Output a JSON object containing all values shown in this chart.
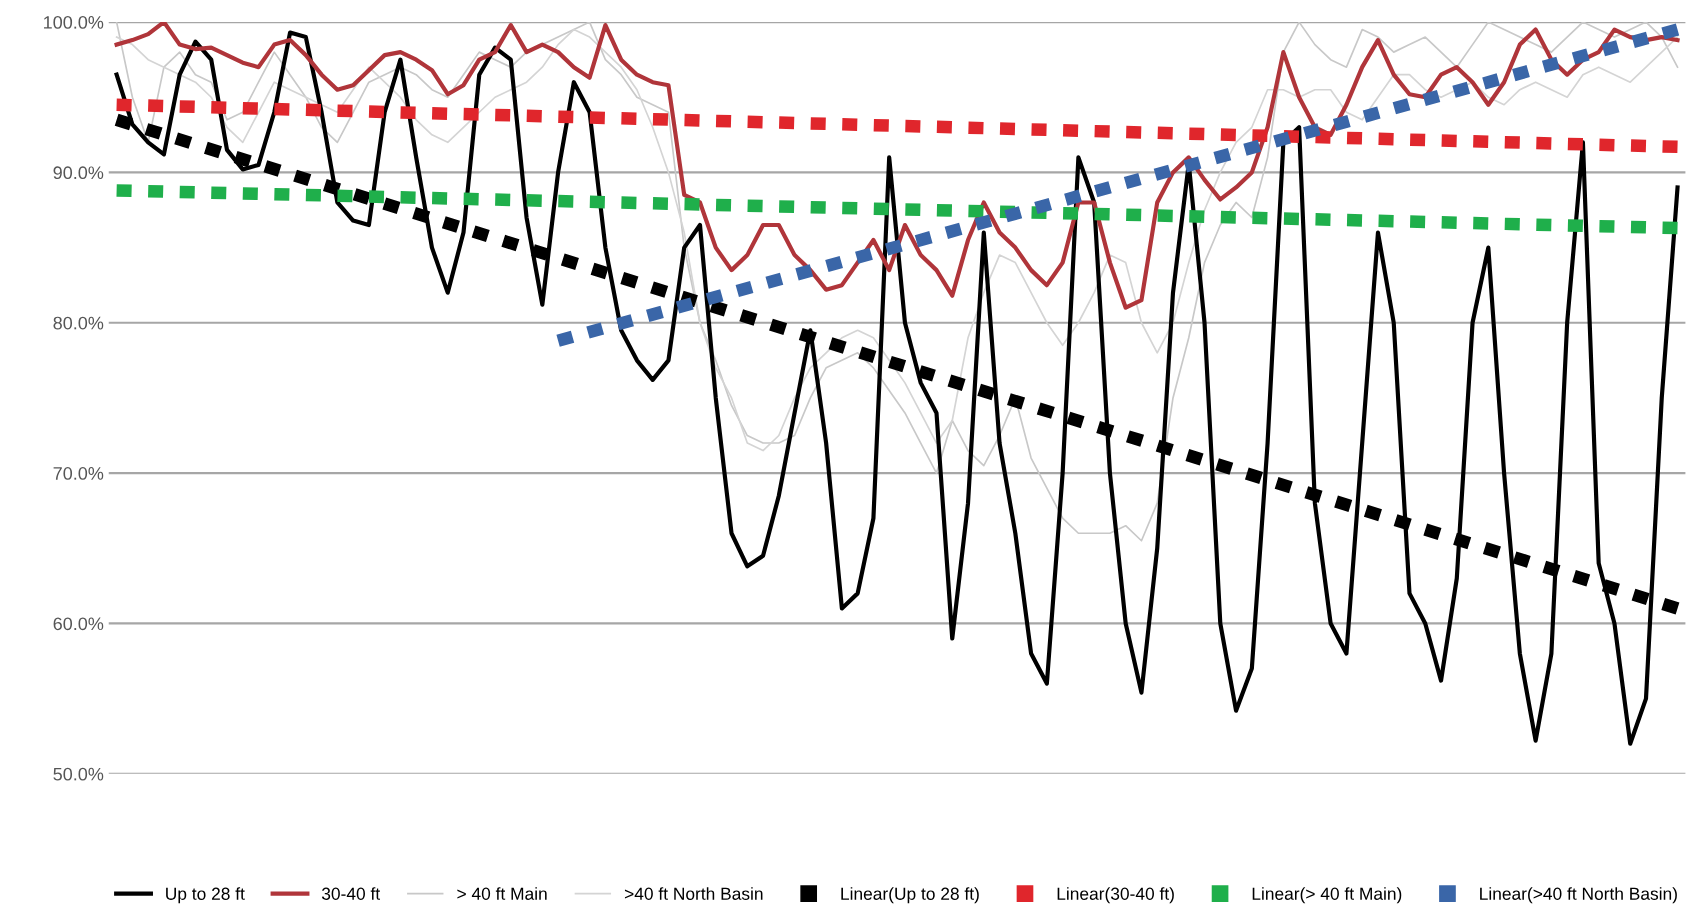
{
  "chart_data": {
    "type": "line",
    "categories": [
      null,
      null,
      null,
      null,
      null,
      null,
      null,
      null,
      null,
      null,
      null,
      null,
      null,
      null,
      null,
      null,
      null,
      null,
      null,
      null,
      null,
      null,
      null,
      null,
      null,
      null,
      null,
      null,
      null,
      null,
      null,
      null,
      null,
      null,
      null,
      null,
      null,
      null,
      null,
      null,
      null,
      null,
      null,
      null,
      null,
      null,
      null,
      null,
      null,
      null,
      null,
      null,
      null,
      null,
      null,
      null,
      null,
      null,
      null,
      null,
      null,
      null,
      null,
      null,
      null,
      null,
      null,
      null,
      null,
      null,
      null,
      null,
      null,
      null,
      null,
      null,
      null,
      null,
      null,
      null,
      null,
      null,
      null,
      null,
      null,
      null,
      null,
      null,
      null,
      null,
      null,
      null,
      null,
      null,
      null,
      null,
      null,
      null,
      null,
      null
    ],
    "series": [
      {
        "name": "Up to 28 ft",
        "color": "#000000",
        "line_style": "solid",
        "values": [
          96.5,
          93.2,
          92,
          91.2,
          96.5,
          98.7,
          97.5,
          91.5,
          90.2,
          90.5,
          94,
          99.3,
          99,
          94,
          88,
          86.8,
          86.5,
          94,
          97.5,
          91,
          85,
          82,
          86,
          96.5,
          98.3,
          97.5,
          87,
          81.2,
          90,
          96,
          94,
          85,
          79.5,
          77.5,
          76.2,
          77.5,
          85,
          86.5,
          75,
          66,
          63.8,
          64.5,
          68.5,
          74,
          79.5,
          72,
          61,
          62,
          67,
          91,
          80,
          76,
          74,
          59,
          68,
          86,
          72,
          66,
          58,
          56,
          70,
          91,
          88,
          70,
          60,
          55.4,
          65,
          82,
          90.6,
          80,
          60,
          54.2,
          57,
          72,
          92,
          93,
          68,
          60,
          58,
          72,
          86,
          80,
          62,
          60,
          56.2,
          63,
          80,
          85,
          70,
          58,
          52.2,
          58,
          80,
          92,
          64,
          60,
          52,
          55,
          75,
          89
        ]
      },
      {
        "name": "30-40 ft",
        "color": "#b0353a",
        "line_style": "solid",
        "values": [
          98.5,
          98.8,
          99.2,
          100,
          98.5,
          98.2,
          98.3,
          97.8,
          97.3,
          97,
          98.5,
          98.8,
          97.8,
          96.5,
          95.5,
          95.8,
          96.8,
          97.8,
          98,
          97.5,
          96.8,
          95.2,
          95.8,
          97.5,
          98,
          99.8,
          98,
          98.5,
          98,
          97,
          96.3,
          99.8,
          97.5,
          96.5,
          96,
          95.8,
          88.5,
          88,
          85,
          83.5,
          84.5,
          86.5,
          86.5,
          84.5,
          83.5,
          82.2,
          82.5,
          84,
          85.5,
          83.5,
          86.5,
          84.5,
          83.5,
          81.8,
          85.5,
          88,
          86,
          85,
          83.5,
          82.5,
          84,
          88,
          88,
          84,
          81,
          81.5,
          88,
          90,
          91,
          89.5,
          88.2,
          89,
          90,
          93,
          98,
          95,
          93,
          92.5,
          94.5,
          97,
          98.8,
          96.5,
          95.2,
          95,
          96.5,
          97,
          96,
          94.5,
          96,
          98.5,
          99.5,
          97.5,
          96.5,
          97.5,
          98,
          99.5,
          99,
          98.8,
          99,
          98.8
        ]
      },
      {
        "name": "> 40 ft Main",
        "color": "#c8c8c8",
        "line_style": "solid",
        "values": [
          100,
          95,
          92,
          97,
          98,
          96.5,
          96,
          93.5,
          94,
          96,
          98,
          96.5,
          95,
          93,
          92,
          94,
          96,
          96.5,
          97,
          96.5,
          95.5,
          95,
          96.5,
          98,
          97.5,
          97,
          98,
          98.5,
          99,
          99.5,
          100,
          97.5,
          96.5,
          95,
          94.5,
          94,
          85,
          80,
          77.5,
          74.5,
          72.5,
          72,
          72,
          72.5,
          75,
          77,
          77.5,
          78,
          77,
          75.5,
          74,
          72,
          70,
          73.5,
          71.5,
          70.5,
          72.5,
          75,
          71,
          69,
          67,
          66,
          66,
          66,
          66.5,
          65.5,
          68,
          75,
          79,
          84,
          86.5,
          88,
          87,
          91,
          98,
          100,
          98.5,
          97.5,
          97,
          99.5,
          99,
          98,
          98.5,
          99,
          98,
          97,
          98.5,
          100,
          99.5,
          99,
          98.5,
          98,
          99,
          100,
          99.5,
          99,
          99.5,
          100,
          99,
          97
        ]
      },
      {
        "name": ">40 ft North Basin",
        "color": "#d4d4d4",
        "line_style": "solid",
        "values": [
          99,
          98.5,
          97.5,
          97,
          96.5,
          96,
          95,
          93,
          92,
          94,
          96,
          95.5,
          95,
          94.5,
          94,
          95.5,
          97,
          96,
          95,
          93.5,
          92.5,
          92,
          93,
          94,
          95,
          95.5,
          96,
          97,
          98.5,
          99.5,
          99,
          98,
          97,
          95.5,
          93,
          90,
          86,
          80,
          77,
          75,
          72,
          71.5,
          72.5,
          75,
          77,
          78,
          79,
          79.5,
          79,
          77.5,
          76,
          74,
          72,
          73.5,
          79,
          82,
          84.5,
          84,
          82,
          80,
          78.5,
          80,
          82,
          84.5,
          84,
          80,
          78,
          80,
          84,
          87.5,
          90,
          92,
          93,
          95.5,
          95.5,
          95,
          95.5,
          95.5,
          94,
          93.5,
          95,
          96.5,
          96.5,
          95.5,
          95,
          95.5,
          96,
          95,
          94.5,
          95.5,
          96,
          95.5,
          95,
          96.5,
          97,
          96.5,
          96,
          97,
          98,
          99
        ]
      },
      {
        "name": "Linear(Up to 28 ft)",
        "color": "#000000",
        "line_style": "dotted",
        "values": [
          93.5,
          null,
          null,
          null,
          null,
          null,
          null,
          null,
          null,
          null,
          null,
          null,
          null,
          null,
          null,
          null,
          null,
          null,
          null,
          null,
          null,
          null,
          null,
          null,
          null,
          null,
          null,
          null,
          null,
          null,
          null,
          null,
          null,
          null,
          null,
          null,
          null,
          null,
          null,
          null,
          null,
          null,
          null,
          null,
          null,
          null,
          null,
          null,
          null,
          null,
          null,
          null,
          null,
          null,
          null,
          null,
          null,
          null,
          null,
          null,
          null,
          null,
          null,
          null,
          null,
          null,
          null,
          null,
          null,
          null,
          null,
          null,
          null,
          null,
          null,
          null,
          null,
          null,
          null,
          null,
          null,
          null,
          null,
          null,
          null,
          null,
          null,
          null,
          null,
          null,
          null,
          null,
          null,
          null,
          null,
          null,
          null,
          null,
          null,
          61
        ]
      },
      {
        "name": "Linear(30-40 ft)",
        "color": "#e0262c",
        "line_style": "dotted",
        "values": [
          94.5,
          null,
          null,
          null,
          null,
          null,
          null,
          null,
          null,
          null,
          null,
          null,
          null,
          null,
          null,
          null,
          null,
          null,
          null,
          null,
          null,
          null,
          null,
          null,
          null,
          null,
          null,
          null,
          null,
          null,
          null,
          null,
          null,
          null,
          null,
          null,
          null,
          null,
          null,
          null,
          null,
          null,
          null,
          null,
          null,
          null,
          null,
          null,
          null,
          null,
          null,
          null,
          null,
          null,
          null,
          null,
          null,
          null,
          null,
          null,
          null,
          null,
          null,
          null,
          null,
          null,
          null,
          null,
          null,
          null,
          null,
          null,
          null,
          null,
          null,
          null,
          null,
          null,
          null,
          null,
          null,
          null,
          null,
          null,
          null,
          null,
          null,
          null,
          null,
          null,
          null,
          null,
          null,
          null,
          null,
          null,
          null,
          null,
          null,
          91.7
        ]
      },
      {
        "name": "Linear(> 40 ft Main)",
        "color": "#1faf4b",
        "line_style": "dotted",
        "values": [
          88.8,
          null,
          null,
          null,
          null,
          null,
          null,
          null,
          null,
          null,
          null,
          null,
          null,
          null,
          null,
          null,
          null,
          null,
          null,
          null,
          null,
          null,
          null,
          null,
          null,
          null,
          null,
          null,
          null,
          null,
          null,
          null,
          null,
          null,
          null,
          null,
          null,
          null,
          null,
          null,
          null,
          null,
          null,
          null,
          null,
          null,
          null,
          null,
          null,
          null,
          null,
          null,
          null,
          null,
          null,
          null,
          null,
          null,
          null,
          null,
          null,
          null,
          null,
          null,
          null,
          null,
          null,
          null,
          null,
          null,
          null,
          null,
          null,
          null,
          null,
          null,
          null,
          null,
          null,
          null,
          null,
          null,
          null,
          null,
          null,
          null,
          null,
          null,
          null,
          null,
          null,
          null,
          null,
          null,
          null,
          null,
          null,
          null,
          null,
          86.3
        ]
      },
      {
        "name": "Linear(>40 ft North Basin)",
        "color": "#3a66a8",
        "line_style": "dotted",
        "values": [
          null,
          null,
          null,
          null,
          null,
          null,
          null,
          null,
          null,
          null,
          null,
          null,
          null,
          null,
          null,
          null,
          null,
          null,
          null,
          null,
          null,
          null,
          null,
          null,
          null,
          null,
          null,
          null,
          78.8,
          null,
          null,
          null,
          null,
          null,
          null,
          null,
          null,
          null,
          null,
          null,
          null,
          null,
          null,
          null,
          null,
          null,
          null,
          null,
          null,
          null,
          null,
          null,
          null,
          null,
          null,
          null,
          null,
          null,
          null,
          null,
          null,
          null,
          null,
          null,
          null,
          null,
          null,
          null,
          null,
          null,
          null,
          null,
          null,
          null,
          null,
          null,
          null,
          null,
          null,
          null,
          null,
          null,
          null,
          null,
          null,
          null,
          null,
          null,
          null,
          null,
          null,
          null,
          null,
          null,
          null,
          null,
          null,
          null,
          null,
          99.5
        ]
      }
    ],
    "ylim": [
      50,
      100
    ],
    "yticks": [
      {
        "value": 50,
        "label": "50.0%"
      },
      {
        "value": 60,
        "label": "60.0%"
      },
      {
        "value": 70,
        "label": "70.0%"
      },
      {
        "value": 80,
        "label": "80.0%"
      },
      {
        "value": 90,
        "label": "90.0%"
      },
      {
        "value": 100,
        "label": "100.0%"
      }
    ],
    "grid": "y",
    "legend": "bottom",
    "tick_labels": "y"
  }
}
